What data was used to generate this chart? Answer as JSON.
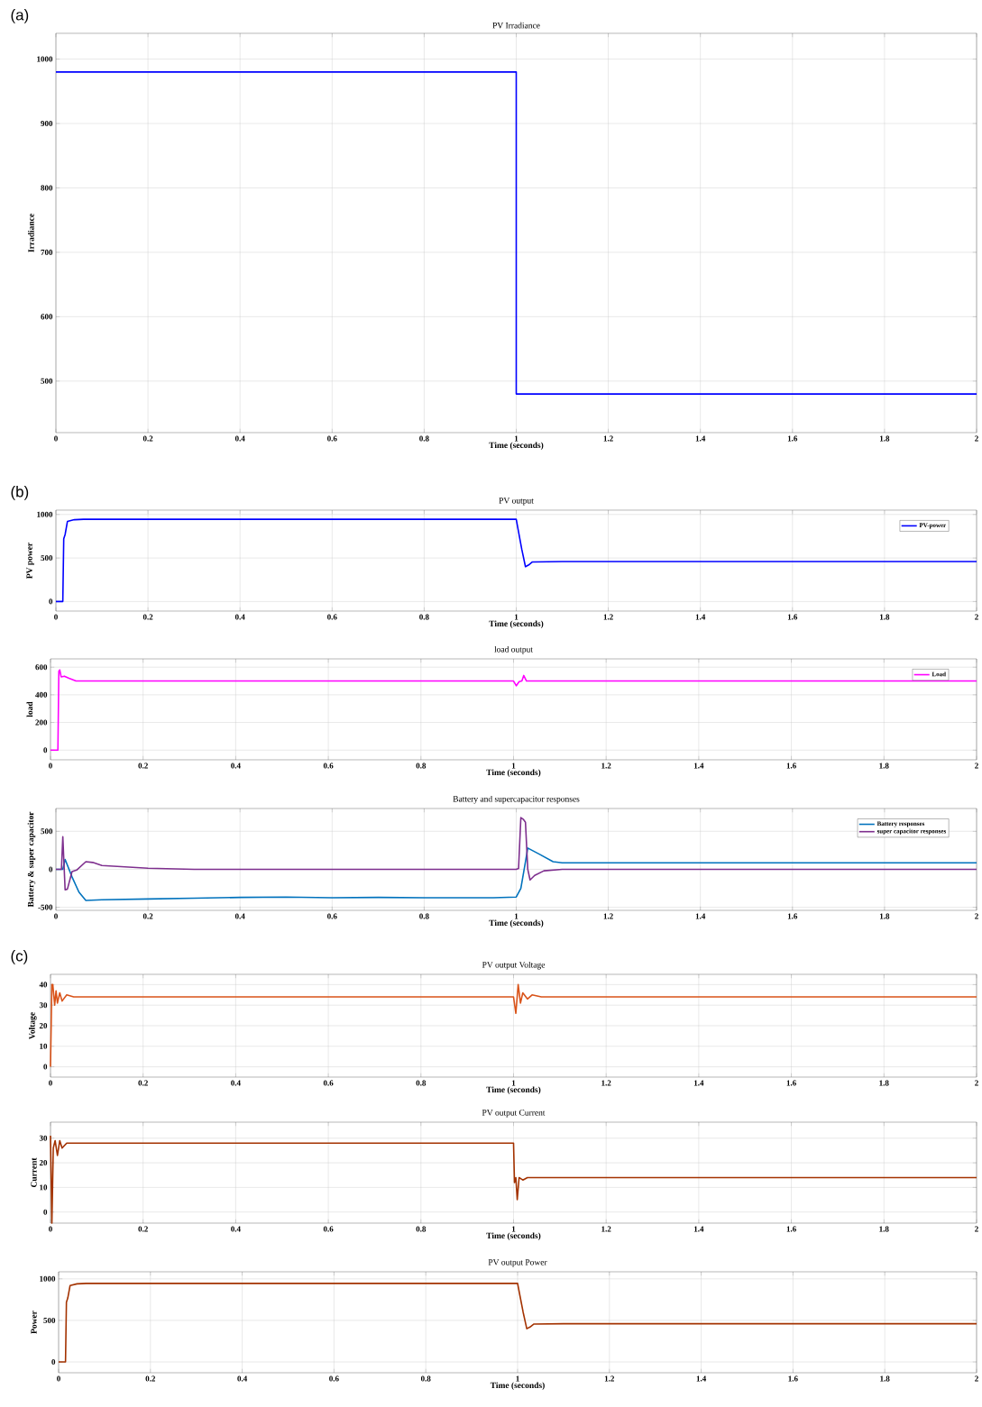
{
  "chart_data": [
    {
      "type": "line",
      "title": "PV Irradiance",
      "xlabel": "Time (seconds)",
      "ylabel": "Irradiance",
      "annotations": [
        "(a)"
      ],
      "grid": true,
      "xlim": [
        0,
        2
      ],
      "ylim": [
        420,
        1040
      ],
      "xticks": [
        0,
        0.2,
        0.4,
        0.6,
        0.8,
        1,
        1.2,
        1.4,
        1.6,
        1.8,
        2
      ],
      "yticks": [
        500,
        600,
        700,
        800,
        900,
        1000
      ],
      "series": [
        {
          "color": "#0000ff",
          "x": [
            0,
            1,
            1,
            2
          ],
          "values": [
            980,
            980,
            480,
            480
          ]
        }
      ]
    },
    {
      "type": "line",
      "title": "PV output",
      "xlabel": "Time (seconds)",
      "ylabel": "PV power",
      "annotations": [
        "(b)"
      ],
      "grid": true,
      "legend": "top right",
      "xlim": [
        0,
        2
      ],
      "ylim": [
        -110,
        1050
      ],
      "xticks": [
        0,
        0.2,
        0.4,
        0.6,
        0.8,
        1,
        1.2,
        1.4,
        1.6,
        1.8,
        2
      ],
      "yticks": [
        0,
        500,
        1000
      ],
      "series": [
        {
          "name": "PV-power",
          "color": "#0000ff",
          "x": [
            0,
            0.015,
            0.017,
            0.02,
            0.025,
            0.04,
            0.06,
            0.3,
            0.6,
            0.9,
            1.0,
            1.005,
            1.012,
            1.02,
            1.027,
            1.035,
            1.1,
            1.5,
            2
          ],
          "values": [
            0,
            0,
            720,
            770,
            920,
            940,
            945,
            945,
            945,
            945,
            945,
            800,
            600,
            400,
            420,
            455,
            460,
            460,
            460
          ]
        }
      ]
    },
    {
      "type": "line",
      "title": "load output",
      "xlabel": "Time (seconds)",
      "ylabel": "load",
      "grid": true,
      "legend": "top right",
      "xlim": [
        0,
        2
      ],
      "ylim": [
        -70,
        660
      ],
      "xticks": [
        0,
        0.2,
        0.4,
        0.6,
        0.8,
        1,
        1.2,
        1.4,
        1.6,
        1.8,
        2
      ],
      "yticks": [
        0,
        200,
        400,
        600
      ],
      "series": [
        {
          "name": "Load",
          "color": "#ff00ff",
          "x": [
            0,
            0.016,
            0.018,
            0.02,
            0.023,
            0.03,
            0.04,
            0.055,
            0.5,
            1.0,
            1.006,
            1.012,
            1.018,
            1.022,
            1.028,
            1.5,
            2
          ],
          "values": [
            0,
            0,
            570,
            580,
            530,
            535,
            520,
            500,
            500,
            500,
            465,
            495,
            500,
            540,
            500,
            500,
            500
          ]
        }
      ]
    },
    {
      "type": "line",
      "title": "Battery and supercapacitor responses",
      "xlabel": "Time (seconds)",
      "ylabel": "Battery & super capacitor",
      "grid": true,
      "legend": "top right",
      "xlim": [
        0,
        2
      ],
      "ylim": [
        -540,
        800
      ],
      "xticks": [
        0,
        0.2,
        0.4,
        0.6,
        0.8,
        1,
        1.2,
        1.4,
        1.6,
        1.8,
        2
      ],
      "yticks": [
        -500,
        0,
        500
      ],
      "series": [
        {
          "name": "Battery responses",
          "color": "#0072bd",
          "x": [
            0,
            0.015,
            0.02,
            0.035,
            0.05,
            0.065,
            0.1,
            0.2,
            0.3,
            0.4,
            0.5,
            0.6,
            0.7,
            0.8,
            0.95,
            1.0,
            1.01,
            1.02,
            1.025,
            1.05,
            1.08,
            1.1,
            1.5,
            2
          ],
          "values": [
            0,
            0,
            130,
            -100,
            -300,
            -410,
            -400,
            -390,
            -380,
            -370,
            -365,
            -375,
            -370,
            -375,
            -375,
            -365,
            -250,
            100,
            280,
            200,
            100,
            85,
            85,
            85
          ]
        },
        {
          "name": "super capacitor responses",
          "color": "#7e2f8e",
          "x": [
            0,
            0.012,
            0.015,
            0.02,
            0.025,
            0.035,
            0.045,
            0.065,
            0.08,
            0.1,
            0.2,
            0.3,
            1.0,
            1.005,
            1.01,
            1.015,
            1.02,
            1.025,
            1.03,
            1.04,
            1.06,
            1.1,
            2
          ],
          "values": [
            0,
            0,
            430,
            -270,
            -260,
            -30,
            -10,
            100,
            90,
            50,
            15,
            0,
            0,
            10,
            680,
            660,
            620,
            0,
            -140,
            -80,
            -20,
            0,
            0
          ]
        }
      ]
    },
    {
      "type": "line",
      "title": "PV output Voltage",
      "xlabel": "Time (seconds)",
      "ylabel": "Voltage",
      "annotations": [
        "(c)"
      ],
      "grid": true,
      "xlim": [
        0,
        2
      ],
      "ylim": [
        -5,
        45
      ],
      "xticks": [
        0,
        0.2,
        0.4,
        0.6,
        0.8,
        1,
        1.2,
        1.4,
        1.6,
        1.8,
        2
      ],
      "yticks": [
        0,
        10,
        20,
        30,
        40
      ],
      "series": [
        {
          "color": "#d95319",
          "x": [
            0,
            0.003,
            0.005,
            0.009,
            0.012,
            0.015,
            0.02,
            0.025,
            0.035,
            0.05,
            0.5,
            1.0,
            1.005,
            1.01,
            1.015,
            1.02,
            1.03,
            1.04,
            1.06,
            1.5,
            2
          ],
          "values": [
            0,
            40,
            40,
            30,
            37,
            31,
            36,
            32,
            35,
            34,
            34,
            34,
            26,
            40,
            31,
            36,
            33,
            35,
            34,
            34,
            34
          ]
        }
      ]
    },
    {
      "type": "line",
      "title": "PV output Current",
      "xlabel": "Time (seconds)",
      "ylabel": "Current",
      "grid": true,
      "xlim": [
        0,
        2
      ],
      "ylim": [
        -4.5,
        36.5
      ],
      "xticks": [
        0,
        0.2,
        0.4,
        0.6,
        0.8,
        1,
        1.2,
        1.4,
        1.6,
        1.8,
        2
      ],
      "yticks": [
        0,
        10,
        20,
        30
      ],
      "series": [
        {
          "color": "#a33200",
          "x": [
            0,
            0.003,
            0.006,
            0.01,
            0.015,
            0.02,
            0.025,
            0.035,
            0.05,
            0.5,
            1.0,
            1.002,
            1.005,
            1.008,
            1.012,
            1.02,
            1.03,
            1.5,
            2
          ],
          "values": [
            31,
            -4.5,
            26,
            29,
            23,
            29,
            26,
            28,
            28,
            28,
            28,
            12,
            14,
            5,
            14,
            13,
            14,
            14,
            14
          ]
        }
      ]
    },
    {
      "type": "line",
      "title": "PV output Power",
      "xlabel": "Time (seconds)",
      "ylabel": "Power",
      "grid": true,
      "xlim": [
        0,
        2
      ],
      "ylim": [
        -130,
        1085
      ],
      "xticks": [
        0,
        0.2,
        0.4,
        0.6,
        0.8,
        1,
        1.2,
        1.4,
        1.6,
        1.8,
        2
      ],
      "yticks": [
        0,
        500,
        1000
      ],
      "series": [
        {
          "color": "#a33200",
          "x": [
            0,
            0.015,
            0.017,
            0.02,
            0.025,
            0.04,
            0.06,
            0.3,
            0.6,
            0.9,
            1.0,
            1.005,
            1.012,
            1.02,
            1.027,
            1.035,
            1.1,
            1.5,
            2
          ],
          "values": [
            0,
            0,
            720,
            770,
            920,
            940,
            945,
            945,
            945,
            945,
            945,
            800,
            600,
            400,
            420,
            455,
            460,
            460,
            460
          ]
        }
      ]
    }
  ]
}
